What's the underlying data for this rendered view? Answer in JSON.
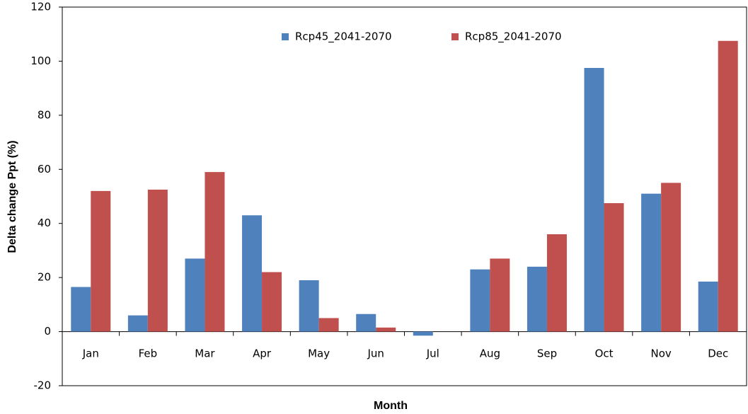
{
  "chart_data": {
    "type": "bar",
    "x_label": "Month",
    "y_label": "Delta change Ppt (%)",
    "categories": [
      "Jan",
      "Feb",
      "Mar",
      "Apr",
      "May",
      "Jun",
      "Jul",
      "Aug",
      "Sep",
      "Oct",
      "Nov",
      "Dec"
    ],
    "series": [
      {
        "name": "Rcp45_2041-2070",
        "color": "#4f81bd",
        "values": [
          16.5,
          6,
          27,
          43,
          19,
          6.5,
          -1.5,
          23,
          24,
          97.5,
          51,
          18.5
        ]
      },
      {
        "name": "Rcp85_2041-2070",
        "color": "#c0504d",
        "values": [
          52,
          52.5,
          59,
          22,
          5,
          1.5,
          0,
          27,
          36,
          47.5,
          55,
          107.5
        ]
      }
    ],
    "ylim": [
      -20,
      120
    ],
    "yticks": [
      -20,
      0,
      20,
      40,
      60,
      80,
      100,
      120
    ],
    "grid": false,
    "legend": "top"
  }
}
